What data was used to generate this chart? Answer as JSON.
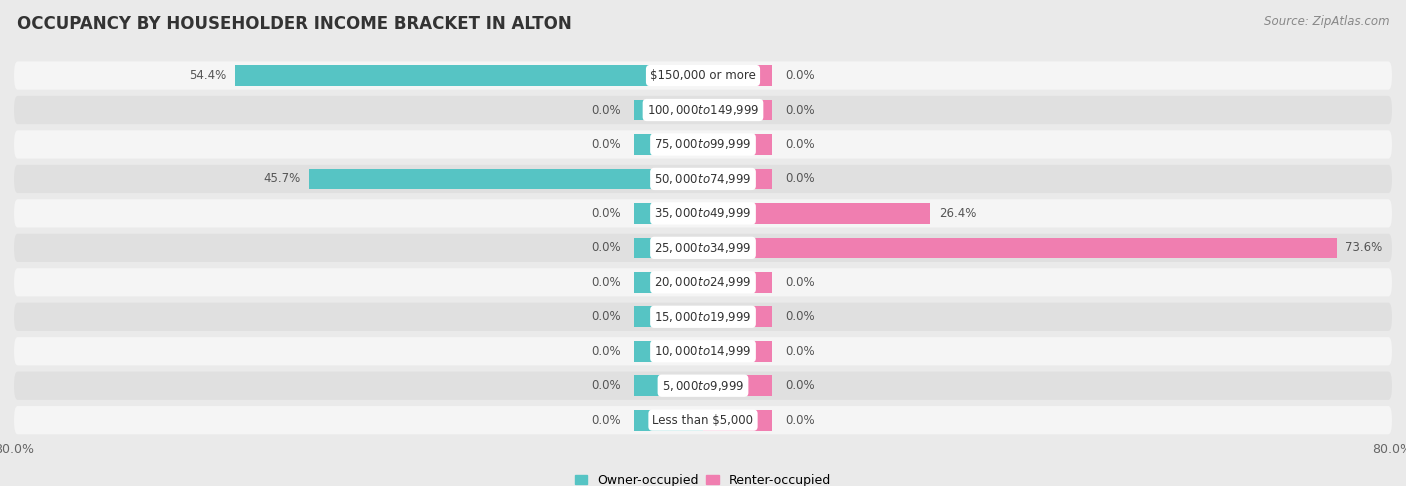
{
  "title": "OCCUPANCY BY HOUSEHOLDER INCOME BRACKET IN ALTON",
  "source": "Source: ZipAtlas.com",
  "categories": [
    "Less than $5,000",
    "$5,000 to $9,999",
    "$10,000 to $14,999",
    "$15,000 to $19,999",
    "$20,000 to $24,999",
    "$25,000 to $34,999",
    "$35,000 to $49,999",
    "$50,000 to $74,999",
    "$75,000 to $99,999",
    "$100,000 to $149,999",
    "$150,000 or more"
  ],
  "owner_values": [
    0.0,
    0.0,
    0.0,
    0.0,
    0.0,
    0.0,
    0.0,
    45.7,
    0.0,
    0.0,
    54.4
  ],
  "renter_values": [
    0.0,
    0.0,
    0.0,
    0.0,
    0.0,
    73.6,
    26.4,
    0.0,
    0.0,
    0.0,
    0.0
  ],
  "owner_color": "#56C4C4",
  "renter_color": "#F07EB0",
  "background_color": "#eaeaea",
  "row_bg_light": "#f5f5f5",
  "row_bg_dark": "#e0e0e0",
  "xlim": 80.0,
  "legend_owner": "Owner-occupied",
  "legend_renter": "Renter-occupied",
  "bar_height": 0.6,
  "label_fontsize": 8.5,
  "cat_fontsize": 8.5,
  "title_fontsize": 12,
  "source_fontsize": 8.5,
  "value_color": "#555555",
  "cat_label_color": "#333333",
  "title_color": "#333333"
}
